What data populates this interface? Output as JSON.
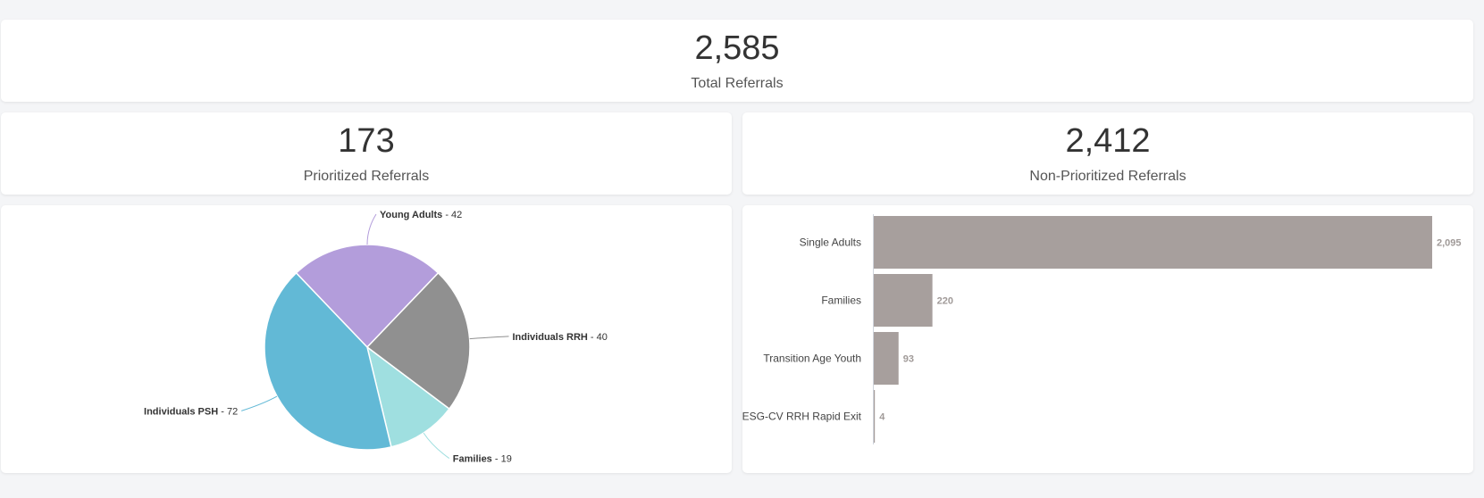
{
  "kpis": {
    "total": {
      "value": "2,585",
      "label": "Total Referrals"
    },
    "prioritized": {
      "value": "173",
      "label": "Prioritized Referrals"
    },
    "non_prioritized": {
      "value": "2,412",
      "label": "Non-Prioritized Referrals"
    }
  },
  "chart_data": [
    {
      "type": "pie",
      "slices": [
        {
          "label": "Young Adults",
          "value": 42,
          "color": "#b39ddb"
        },
        {
          "label": "Individuals RRH",
          "value": 40,
          "color": "#909090"
        },
        {
          "label": "Families",
          "value": 19,
          "color": "#9fdfe0"
        },
        {
          "label": "Individuals PSH",
          "value": 72,
          "color": "#62b9d6"
        }
      ]
    },
    {
      "type": "bar",
      "orientation": "horizontal",
      "categories": [
        "Single Adults",
        "Families",
        "Transition Age Youth",
        "ESG-CV RRH Rapid Exit"
      ],
      "values": [
        2095,
        220,
        93,
        4
      ],
      "value_labels": [
        "2,095",
        "220",
        "93",
        "4"
      ],
      "color": "#a79f9d",
      "label_color": "#a09a98"
    }
  ]
}
